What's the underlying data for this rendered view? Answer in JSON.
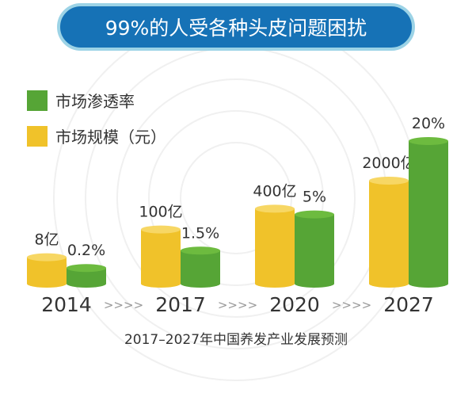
{
  "title": "99%的人受各种头皮问题困扰",
  "subtitle": "2017–2027年中国养发产业发展预测",
  "arrow_separator": ">>>>",
  "colors": {
    "banner": "#1672b6",
    "banner_border": "#9cd3e6",
    "green": "#56a536",
    "green_top": "#6dbb3f",
    "yellow": "#f0c22a",
    "yellow_top": "#f7d764",
    "text": "#333333"
  },
  "chart_data": {
    "type": "bar",
    "categories": [
      "2014",
      "2017",
      "2020",
      "2027"
    ],
    "series": [
      {
        "name": "市场规模（元）",
        "color": "#f0c22a",
        "values": [
          8,
          100,
          400,
          2000
        ],
        "labels": [
          "8亿",
          "100亿",
          "400亿",
          "2000亿"
        ]
      },
      {
        "name": "市场渗透率",
        "color": "#56a536",
        "values": [
          0.2,
          1.5,
          5,
          20
        ],
        "labels": [
          "0.2%",
          "1.5%",
          "5%",
          "20%"
        ]
      }
    ],
    "legend": [
      {
        "label": "市场渗透率",
        "color": "#56a536"
      },
      {
        "label": "市场规模（元）",
        "color": "#f0c22a"
      }
    ],
    "legend_position": "top-left",
    "grid": false
  }
}
